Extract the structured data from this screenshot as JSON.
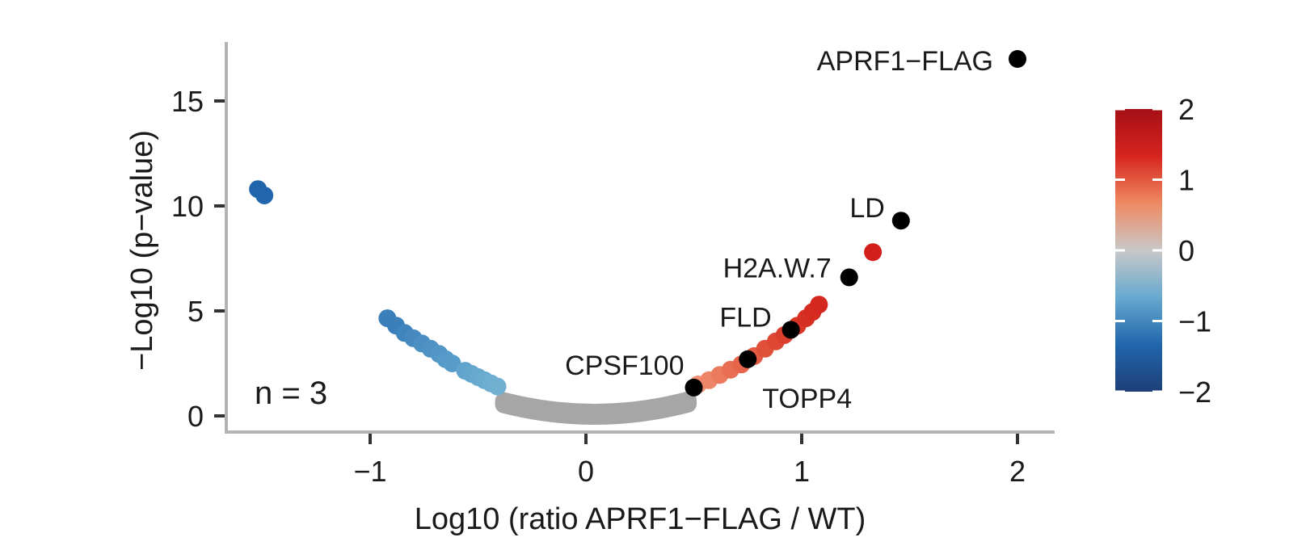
{
  "chart_data": {
    "type": "scatter",
    "title": "",
    "xlabel": "Log10 (ratio APRF1−FLAG / WT)",
    "ylabel": "−Log10 (p−value)",
    "xlim": [
      -1.7,
      2.2
    ],
    "ylim": [
      -0.8,
      17.8
    ],
    "x_ticks": [
      -1,
      0,
      1,
      2
    ],
    "x_tick_labels": [
      "−1",
      "0",
      "1",
      "2"
    ],
    "y_ticks": [
      0,
      5,
      10,
      15
    ],
    "y_tick_labels": [
      "0",
      "5",
      "10",
      "15"
    ],
    "annotation": "n = 3",
    "annotation_position": "bottom-left",
    "legend": {
      "type": "colorbar",
      "position": "right",
      "range": [
        -2,
        2
      ],
      "ticks": [
        2,
        1,
        0,
        -1,
        -2
      ],
      "tick_labels": [
        "2",
        "1",
        "0",
        "−1",
        "−2"
      ],
      "colors": [
        "#1e3f78",
        "#2166ac",
        "#67a9cf",
        "#c8c8c8",
        "#ef8a62",
        "#d6251f",
        "#a50f15"
      ]
    },
    "highlighted": [
      {
        "label": "APRF1−FLAG",
        "x": 2.0,
        "y": 17.0
      },
      {
        "label": "LD",
        "x": 1.46,
        "y": 9.3
      },
      {
        "label": "H2A.W.7",
        "x": 1.22,
        "y": 6.6
      },
      {
        "label": "FLD",
        "x": 0.95,
        "y": 4.1
      },
      {
        "label": "TOPP4",
        "x": 0.75,
        "y": 2.7
      },
      {
        "label": "CPSF100",
        "x": 0.5,
        "y": 1.35
      }
    ],
    "points": [
      {
        "x": -1.52,
        "y": 10.8,
        "color": "#2166ac"
      },
      {
        "x": -1.49,
        "y": 10.5,
        "color": "#2166ac"
      },
      {
        "x": -0.92,
        "y": 4.65,
        "color": "#3a7fb9"
      },
      {
        "x": -0.88,
        "y": 4.3,
        "color": "#3a7fb9"
      },
      {
        "x": -0.84,
        "y": 3.95,
        "color": "#3f84bc"
      },
      {
        "x": -0.8,
        "y": 3.7,
        "color": "#4589bf"
      },
      {
        "x": -0.76,
        "y": 3.45,
        "color": "#4a8ec2"
      },
      {
        "x": -0.72,
        "y": 3.2,
        "color": "#4e92c4"
      },
      {
        "x": -0.68,
        "y": 2.95,
        "color": "#5196c6"
      },
      {
        "x": -0.65,
        "y": 2.7,
        "color": "#559ac8"
      },
      {
        "x": -0.62,
        "y": 2.5,
        "color": "#589dca"
      },
      {
        "x": -0.56,
        "y": 2.15,
        "color": "#60a3cd"
      },
      {
        "x": -0.53,
        "y": 2.0,
        "color": "#63a6ce"
      },
      {
        "x": -0.5,
        "y": 1.85,
        "color": "#67a9cf"
      },
      {
        "x": -0.47,
        "y": 1.7,
        "color": "#6aabd0"
      },
      {
        "x": -0.44,
        "y": 1.55,
        "color": "#6eaed1"
      },
      {
        "x": -0.41,
        "y": 1.4,
        "color": "#72b0d2"
      },
      {
        "x": 0.52,
        "y": 1.5,
        "color": "#f08f73"
      },
      {
        "x": 0.57,
        "y": 1.7,
        "color": "#ee8468"
      },
      {
        "x": 0.62,
        "y": 1.95,
        "color": "#ec7a5e"
      },
      {
        "x": 0.67,
        "y": 2.2,
        "color": "#e96f54"
      },
      {
        "x": 0.72,
        "y": 2.45,
        "color": "#e7654b"
      },
      {
        "x": 0.78,
        "y": 2.85,
        "color": "#e45a42"
      },
      {
        "x": 0.83,
        "y": 3.2,
        "color": "#e0503a"
      },
      {
        "x": 0.88,
        "y": 3.55,
        "color": "#dd4733"
      },
      {
        "x": 0.92,
        "y": 3.85,
        "color": "#da3f2e"
      },
      {
        "x": 0.98,
        "y": 4.3,
        "color": "#d83628"
      },
      {
        "x": 1.02,
        "y": 4.65,
        "color": "#d63024"
      },
      {
        "x": 1.05,
        "y": 4.95,
        "color": "#d52b21"
      },
      {
        "x": 1.08,
        "y": 5.3,
        "color": "#d4271f"
      },
      {
        "x": 1.33,
        "y": 7.8,
        "color": "#d21f1c"
      }
    ],
    "background_points_note": ""
  }
}
